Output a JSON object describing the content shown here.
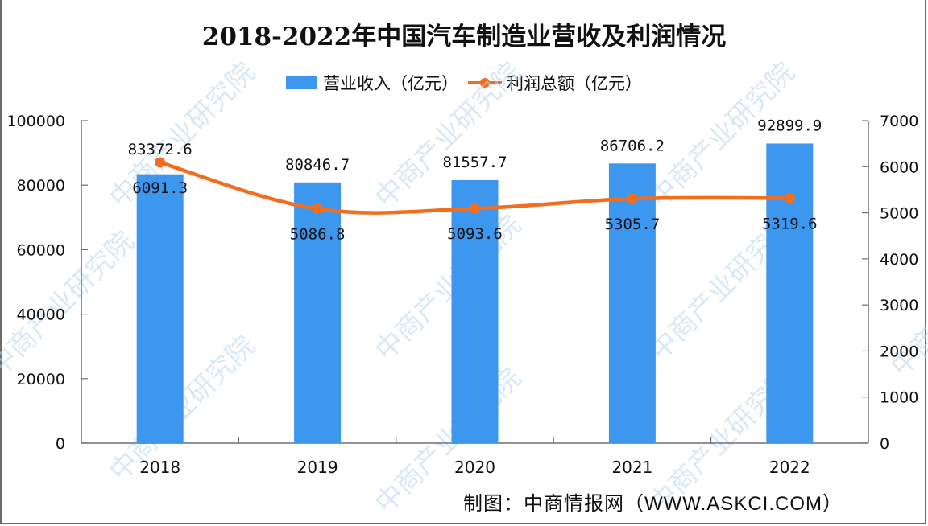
{
  "title": "2018-2022年中国汽车制造业营收及利润情况",
  "legend": [
    {
      "label": "营业收入（亿元）",
      "type": "bar",
      "color": "#3d97ee"
    },
    {
      "label": "利润总额（亿元）",
      "type": "line",
      "color": "#f26d1d"
    }
  ],
  "source": "制图：中商情报网（WWW.ASKCI.COM）",
  "watermark": "中商产业研究院",
  "chart_data": {
    "type": "bar+line",
    "title": "2018-2022年中国汽车制造业营收及利润情况",
    "categories": [
      "2018",
      "2019",
      "2020",
      "2021",
      "2022"
    ],
    "series": [
      {
        "name": "营业收入（亿元）",
        "type": "bar",
        "axis": "left",
        "color": "#3d97ee",
        "values": [
          83372.6,
          80846.7,
          81557.7,
          86706.2,
          92899.9
        ],
        "labels": [
          "83372.6",
          "80846.7",
          "81557.7",
          "86706.2",
          "92899.9"
        ]
      },
      {
        "name": "利润总额（亿元）",
        "type": "line",
        "axis": "right",
        "color": "#f26d1d",
        "values": [
          6091.3,
          5086.8,
          5093.6,
          5305.7,
          5319.6
        ],
        "labels": [
          "6091.3",
          "5086.8",
          "5093.6",
          "5305.7",
          "5319.6"
        ]
      }
    ],
    "left_axis": {
      "ylim": [
        0,
        100000
      ],
      "ticks": [
        "0",
        "20000",
        "40000",
        "60000",
        "80000",
        "100000"
      ]
    },
    "right_axis": {
      "ylim": [
        0,
        7000
      ],
      "ticks": [
        "0",
        "1000",
        "2000",
        "3000",
        "4000",
        "5000",
        "6000",
        "7000"
      ]
    },
    "xlabel": "",
    "ylabel": "",
    "grid": false,
    "legend_position": "top"
  }
}
